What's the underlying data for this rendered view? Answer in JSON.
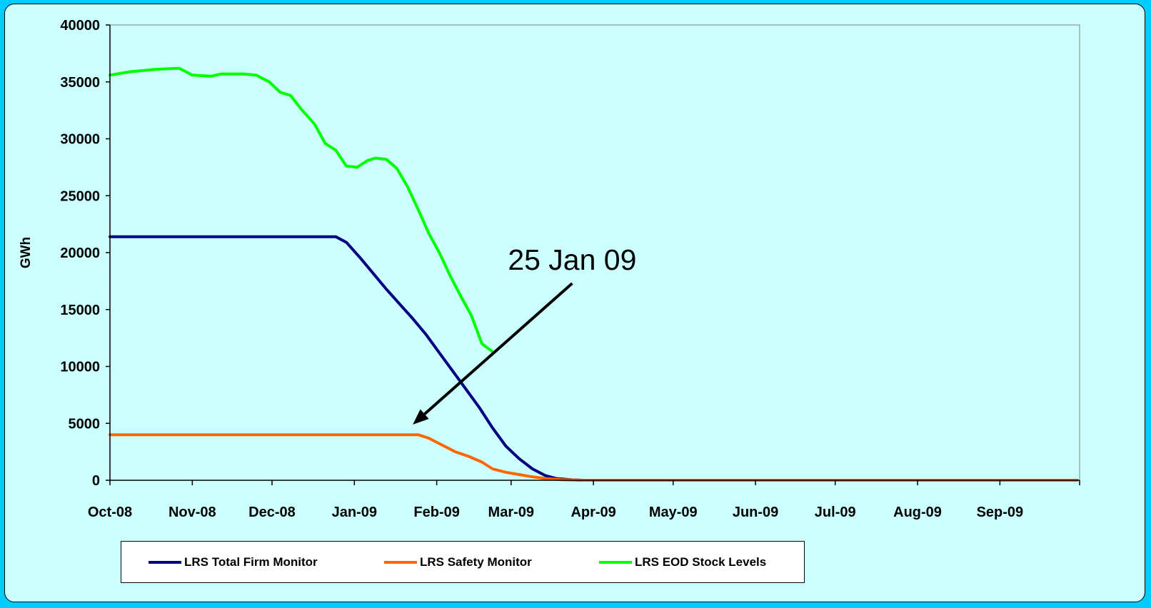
{
  "chart_data": {
    "type": "line",
    "ylabel": "GWh",
    "xlabel": "",
    "ylim": [
      0,
      40000
    ],
    "yticks": [
      0,
      5000,
      10000,
      15000,
      20000,
      25000,
      30000,
      35000,
      40000
    ],
    "x_tick_labels": [
      "Oct-08",
      "Nov-08",
      "Dec-08",
      "Jan-09",
      "Feb-09",
      "Mar-09",
      "Apr-09",
      "May-09",
      "Jun-09",
      "Jul-09",
      "Aug-09",
      "Sep-09"
    ],
    "xlim": [
      "2008-10-01",
      "2009-09-30"
    ],
    "grid": false,
    "legend_position": "bottom",
    "series": [
      {
        "name": "LRS Total Firm Monitor",
        "color": "#000080",
        "points": [
          [
            "2008-10-01",
            21400
          ],
          [
            "2008-12-25",
            21400
          ],
          [
            "2008-12-29",
            20900
          ],
          [
            "2009-01-03",
            19600
          ],
          [
            "2009-01-08",
            18200
          ],
          [
            "2009-01-13",
            16800
          ],
          [
            "2009-01-18",
            15500
          ],
          [
            "2009-01-23",
            14200
          ],
          [
            "2009-01-28",
            12800
          ],
          [
            "2009-02-02",
            11200
          ],
          [
            "2009-02-07",
            9600
          ],
          [
            "2009-02-12",
            8000
          ],
          [
            "2009-02-17",
            6400
          ],
          [
            "2009-02-22",
            4600
          ],
          [
            "2009-02-27",
            3000
          ],
          [
            "2009-03-04",
            1900
          ],
          [
            "2009-03-09",
            1000
          ],
          [
            "2009-03-14",
            400
          ],
          [
            "2009-03-18",
            150
          ],
          [
            "2009-03-24",
            40
          ],
          [
            "2009-03-28",
            0
          ],
          [
            "2009-09-30",
            0
          ]
        ]
      },
      {
        "name": "LRS Safety Monitor",
        "color": "#ff6600",
        "points": [
          [
            "2008-10-01",
            4000
          ],
          [
            "2009-01-25",
            4000
          ],
          [
            "2009-01-29",
            3700
          ],
          [
            "2009-02-03",
            3100
          ],
          [
            "2009-02-08",
            2500
          ],
          [
            "2009-02-13",
            2100
          ],
          [
            "2009-02-18",
            1600
          ],
          [
            "2009-02-22",
            1000
          ],
          [
            "2009-02-27",
            700
          ],
          [
            "2009-03-04",
            500
          ],
          [
            "2009-03-09",
            300
          ],
          [
            "2009-03-14",
            150
          ],
          [
            "2009-03-20",
            50
          ],
          [
            "2009-03-28",
            0
          ],
          [
            "2009-09-30",
            0
          ]
        ]
      },
      {
        "name": "LRS EOD Stock Levels",
        "color": "#00ff00",
        "points": [
          [
            "2008-10-01",
            35600
          ],
          [
            "2008-10-09",
            35900
          ],
          [
            "2008-10-18",
            36100
          ],
          [
            "2008-10-27",
            36200
          ],
          [
            "2008-11-01",
            35600
          ],
          [
            "2008-11-08",
            35500
          ],
          [
            "2008-11-12",
            35700
          ],
          [
            "2008-11-20",
            35700
          ],
          [
            "2008-11-25",
            35600
          ],
          [
            "2008-11-30",
            35000
          ],
          [
            "2008-12-04",
            34100
          ],
          [
            "2008-12-08",
            33800
          ],
          [
            "2008-12-12",
            32600
          ],
          [
            "2008-12-17",
            31300
          ],
          [
            "2008-12-21",
            29600
          ],
          [
            "2008-12-25",
            29000
          ],
          [
            "2008-12-29",
            27600
          ],
          [
            "2009-01-02",
            27500
          ],
          [
            "2009-01-06",
            28100
          ],
          [
            "2009-01-09",
            28300
          ],
          [
            "2009-01-13",
            28200
          ],
          [
            "2009-01-17",
            27400
          ],
          [
            "2009-01-21",
            25800
          ],
          [
            "2009-01-25",
            23800
          ],
          [
            "2009-01-29",
            21700
          ],
          [
            "2009-02-02",
            20000
          ],
          [
            "2009-02-06",
            18000
          ],
          [
            "2009-02-10",
            16200
          ],
          [
            "2009-02-14",
            14500
          ],
          [
            "2009-02-18",
            12000
          ],
          [
            "2009-02-22",
            11300
          ]
        ]
      }
    ],
    "annotations": [
      {
        "text": "25 Jan 09",
        "arrow_from": [
          "2009-03-24",
          17300
        ],
        "arrow_to": [
          "2009-01-23",
          4900
        ]
      }
    ]
  }
}
